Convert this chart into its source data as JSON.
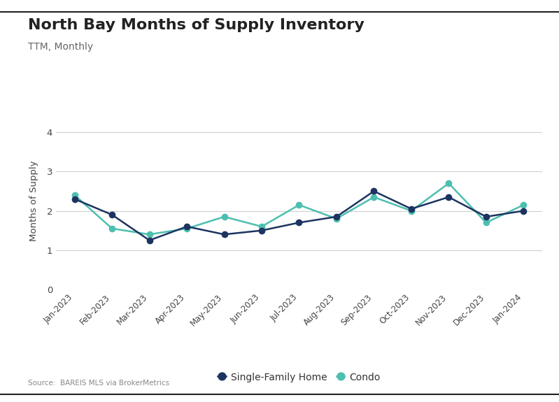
{
  "title": "North Bay Months of Supply Inventory",
  "subtitle": "TTM, Monthly",
  "ylabel": "Months of Supply",
  "source": "Source:  BAREIS MLS via BrokerMetrics",
  "categories": [
    "Jan-2023",
    "Feb-2023",
    "Mar-2023",
    "Apr-2023",
    "May-2023",
    "Jun-2023",
    "Jul-2023",
    "Aug-2023",
    "Sep-2023",
    "Oct-2023",
    "Nov-2023",
    "Dec-2023",
    "Jan-2024"
  ],
  "sfh_values": [
    2.3,
    1.9,
    1.25,
    1.6,
    1.4,
    1.5,
    1.7,
    1.85,
    2.5,
    2.05,
    2.35,
    1.85,
    2.0
  ],
  "condo_values": [
    2.4,
    1.55,
    1.4,
    1.55,
    1.85,
    1.6,
    2.15,
    1.8,
    2.35,
    2.0,
    2.7,
    1.7,
    2.15
  ],
  "sfh_color": "#1d3461",
  "condo_color": "#4dbfb0",
  "ylim": [
    0,
    4.5
  ],
  "yticks": [
    0,
    1,
    2,
    3,
    4
  ],
  "background_color": "#ffffff",
  "grid_color": "#d0d0d0",
  "title_fontsize": 16,
  "subtitle_fontsize": 10,
  "legend_labels": [
    "Single-Family Home",
    "Condo"
  ],
  "marker_size": 6,
  "linewidth": 1.8,
  "border_color": "#222222"
}
